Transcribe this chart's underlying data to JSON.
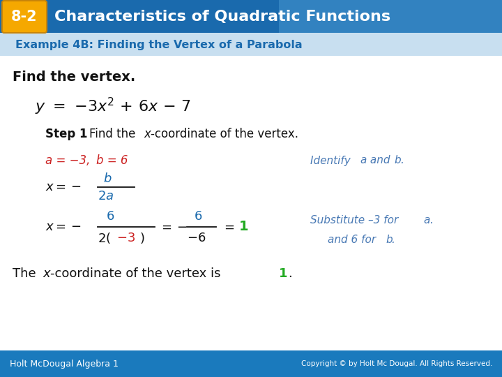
{
  "title_badge": "8-2",
  "title_text": "Characteristics of Quadratic Functions",
  "subtitle": "Example 4B: Finding the Vertex of a Parabola",
  "bg_color": "#ffffff",
  "header_bg": "#1a6aad",
  "header_bg2": "#4a9ad4",
  "badge_bg": "#f5a800",
  "subtitle_color": "#1a6aad",
  "footer_bg": "#1a7abd",
  "footer_left": "Holt McDougal Algebra 1",
  "footer_right": "Copyright © by Holt Mc Dougal. All Rights Reserved.",
  "green_color": "#22aa22",
  "red_color": "#cc2222",
  "blue_color": "#1a6aad",
  "black_color": "#111111",
  "italic_blue": "#4a7ab5"
}
